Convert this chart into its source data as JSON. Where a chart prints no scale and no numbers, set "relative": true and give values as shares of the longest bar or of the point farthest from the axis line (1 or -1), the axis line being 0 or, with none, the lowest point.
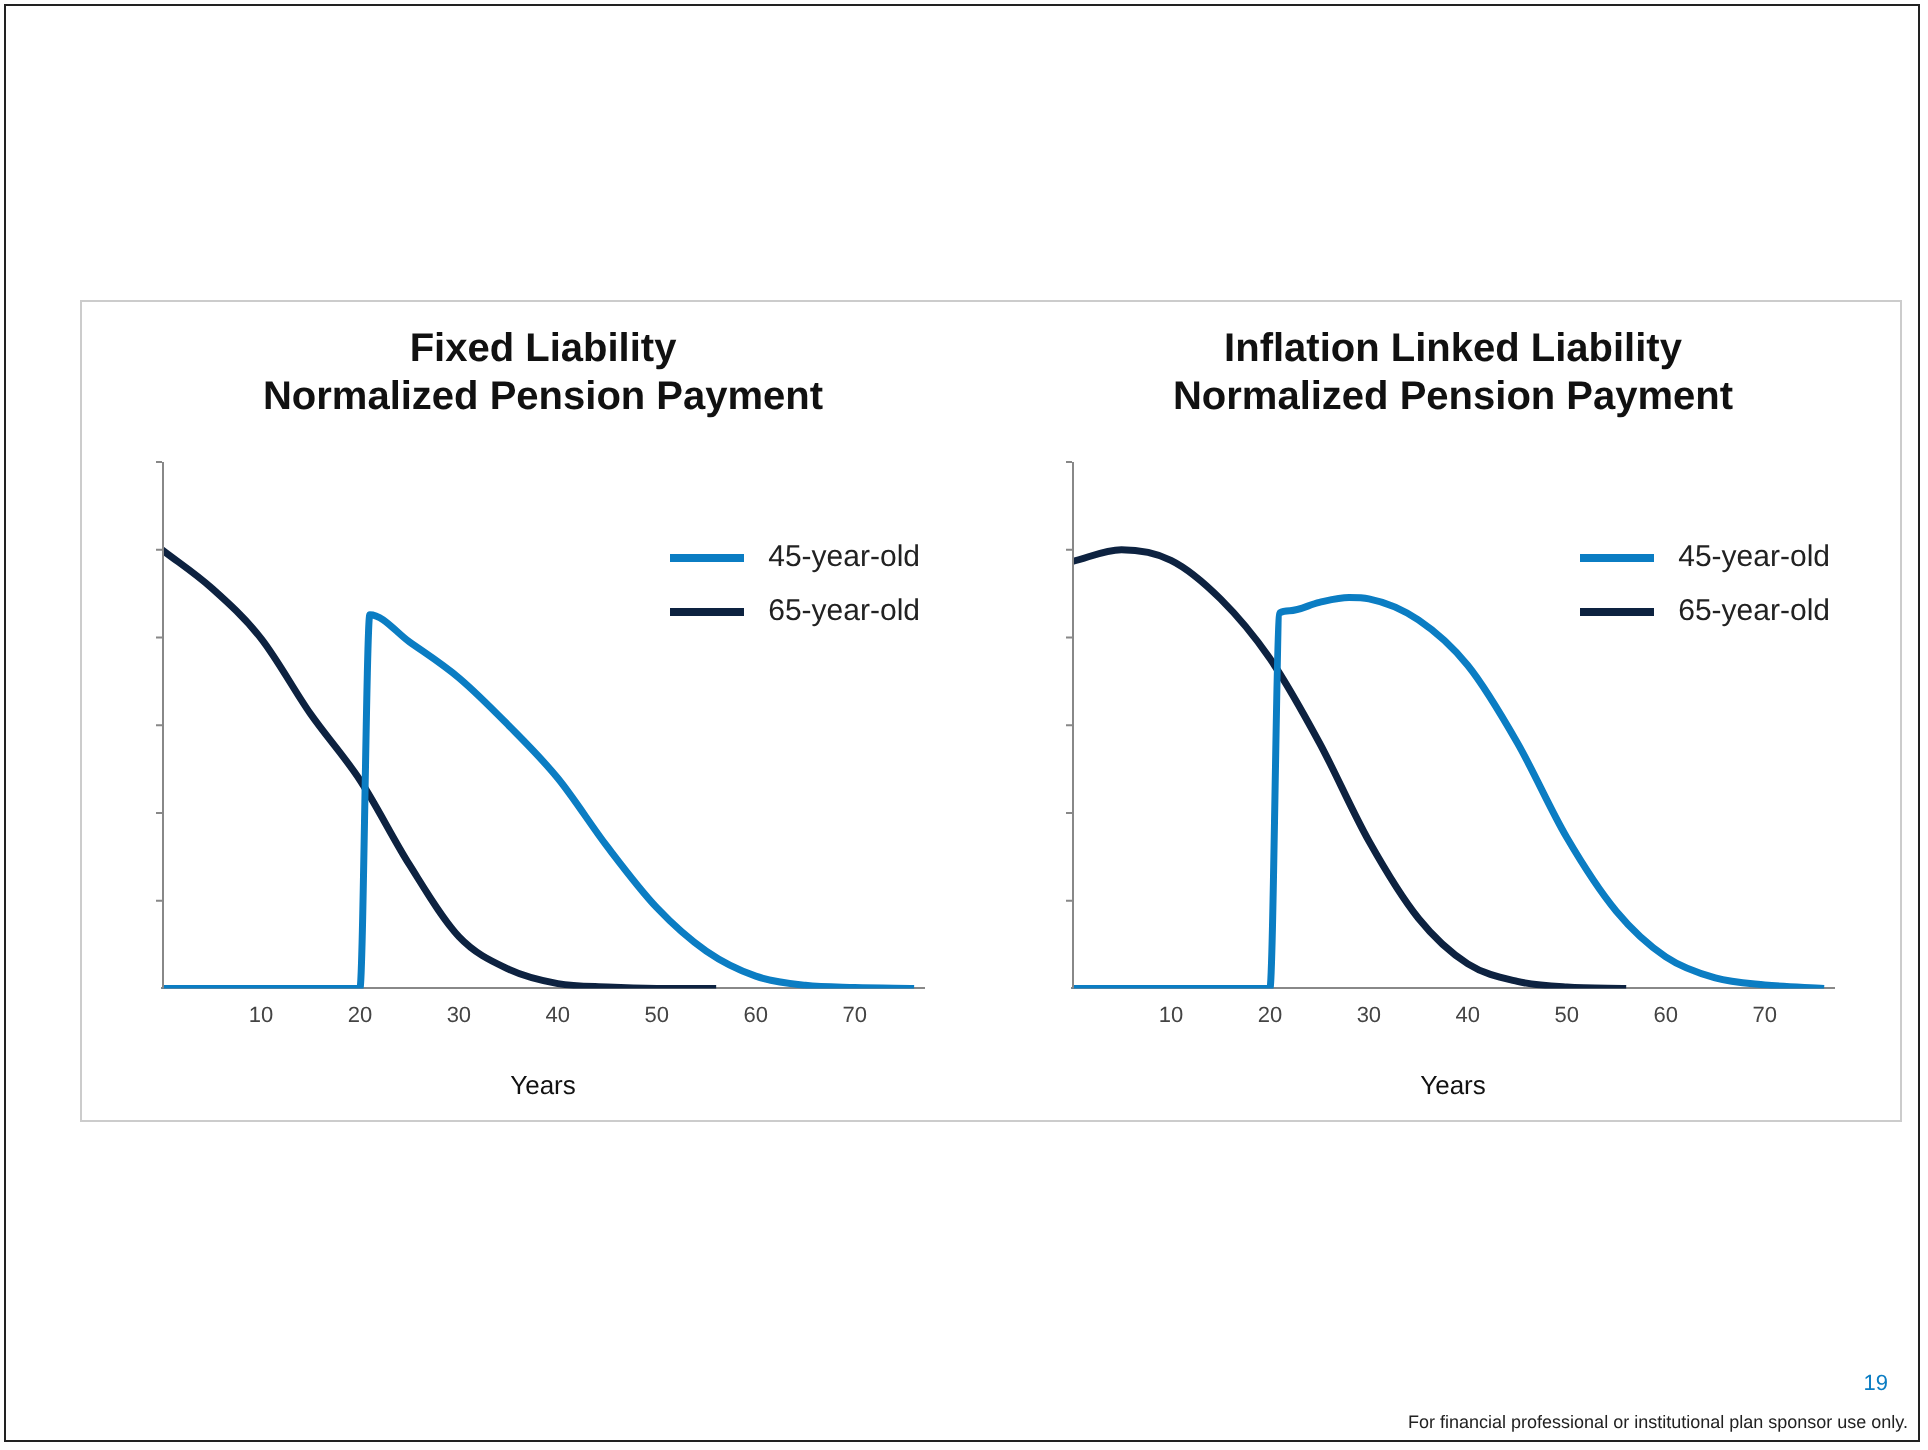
{
  "chart_data": [
    {
      "type": "line",
      "title": "Fixed Liability\nNormalized Pension Payment",
      "xlabel": "Years",
      "relative": true,
      "xlim": [
        0,
        77
      ],
      "xticks": [
        10,
        20,
        30,
        40,
        50,
        60,
        70
      ],
      "grid": false,
      "legend": "top right",
      "marker": "none",
      "line_style": "solid",
      "series": [
        {
          "name": "45-year-old",
          "color": "#0b7dc3",
          "x": [
            0,
            20,
            21,
            25,
            30,
            35,
            40,
            45,
            50,
            55,
            60,
            65,
            70,
            76
          ],
          "values": [
            0,
            0,
            0.852,
            0.79,
            0.708,
            0.6,
            0.479,
            0.323,
            0.184,
            0.085,
            0.028,
            0.007,
            0.002,
            0
          ]
        },
        {
          "name": "65-year-old",
          "color": "#0d2240",
          "x": [
            0,
            5,
            10,
            15,
            20,
            25,
            30,
            35,
            40,
            45,
            50,
            56
          ],
          "values": [
            1,
            0.913,
            0.798,
            0.626,
            0.475,
            0.282,
            0.118,
            0.044,
            0.011,
            0.003,
            0,
            0
          ]
        }
      ]
    },
    {
      "type": "line",
      "title": "Inflation Linked Liability\nNormalized Pension Payment",
      "xlabel": "Years",
      "relative": true,
      "xlim": [
        0,
        77
      ],
      "xticks": [
        10,
        20,
        30,
        40,
        50,
        60,
        70
      ],
      "grid": false,
      "legend": "top right",
      "marker": "none",
      "line_style": "solid",
      "annotations": [
        "For financial professional or institutional plan sponsor use only.",
        "19"
      ],
      "series": [
        {
          "name": "45-year-old",
          "color": "#0b7dc3",
          "x": [
            0,
            20,
            21,
            22,
            25,
            28,
            30,
            35,
            40,
            45,
            50,
            55,
            60,
            65,
            70,
            76
          ],
          "values": [
            0,
            0,
            0.856,
            0.861,
            0.88,
            0.891,
            0.888,
            0.84,
            0.736,
            0.56,
            0.344,
            0.176,
            0.072,
            0.024,
            0.008,
            0
          ]
        },
        {
          "name": "65-year-old",
          "color": "#0d2240",
          "x": [
            0,
            5,
            10,
            15,
            20,
            25,
            30,
            35,
            40,
            45,
            50,
            56
          ],
          "values": [
            0.973,
            1,
            0.976,
            0.888,
            0.752,
            0.56,
            0.336,
            0.16,
            0.056,
            0.016,
            0.003,
            0
          ]
        }
      ]
    }
  ]
}
